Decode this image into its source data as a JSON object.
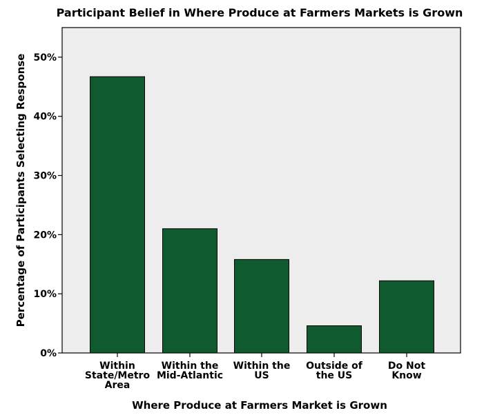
{
  "chart_data": {
    "type": "bar",
    "title": "Participant Belief in Where Produce at Farmers Markets is Grown",
    "xlabel": "Where Produce at Farmers Market is Grown",
    "ylabel": "Percentage of Participants Selecting Response",
    "categories": [
      [
        "Within",
        "State/Metro",
        "Area"
      ],
      [
        "Within the",
        "Mid-Atlantic"
      ],
      [
        "Within the",
        "US"
      ],
      [
        "Outside of",
        "the US"
      ],
      [
        "Do Not",
        "Know"
      ]
    ],
    "values": [
      46.7,
      21.0,
      15.8,
      4.6,
      12.2
    ],
    "ylim": [
      0,
      55
    ],
    "yticks": [
      0,
      10,
      20,
      30,
      40,
      50
    ],
    "ytick_labels": [
      "0%",
      "10%",
      "20%",
      "30%",
      "40%",
      "50%"
    ],
    "grid": false,
    "colors": {
      "bar_fill": "#0f5a2e",
      "bar_stroke": "#000000",
      "plot_background": "#ededed"
    }
  }
}
